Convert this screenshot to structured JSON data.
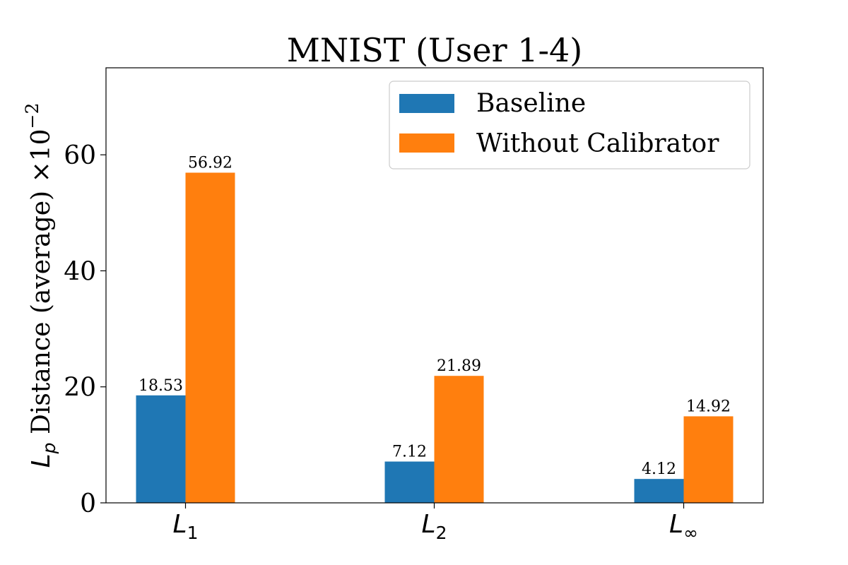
{
  "chart_data": {
    "type": "bar",
    "title": "MNIST (User 1-4)",
    "ylabel": {
      "main": "L",
      "sub": "p",
      "rest": " Distance (average) ×10",
      "sup": "−2"
    },
    "xlabel": "",
    "categories": [
      {
        "main": "L",
        "sub": "1"
      },
      {
        "main": "L",
        "sub": "2"
      },
      {
        "main": "L",
        "sub": "∞"
      }
    ],
    "series": [
      {
        "name": "Baseline",
        "color": "#1f77b4",
        "values": [
          18.53,
          7.12,
          4.12
        ],
        "labels": [
          "18.53",
          "7.12",
          "4.12"
        ]
      },
      {
        "name": "Without Calibrator",
        "color": "#ff7f0e",
        "values": [
          56.92,
          21.89,
          14.92
        ],
        "labels": [
          "56.92",
          "21.89",
          "14.92"
        ]
      }
    ],
    "ylim": [
      0,
      75
    ],
    "yticks": [
      0,
      20,
      40,
      60
    ],
    "ytick_labels": [
      "0",
      "20",
      "40",
      "60"
    ],
    "grid": false,
    "legend_position": "top-right"
  }
}
